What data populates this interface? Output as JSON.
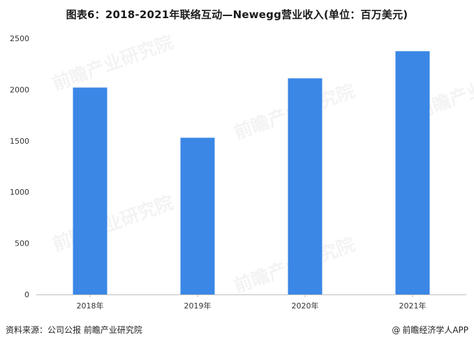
{
  "title": "图表6：2018-2021年联络互动—Newegg营业收入(单位：百万美元)",
  "chart_data": {
    "type": "bar",
    "categories": [
      "2018年",
      "2019年",
      "2020年",
      "2021年"
    ],
    "values": [
      2020,
      1530,
      2110,
      2375
    ],
    "ylim": [
      0,
      2500
    ],
    "yticks": [
      0,
      500,
      1000,
      1500,
      2000,
      2500
    ],
    "grid": false,
    "bar_color": "#3a87e6"
  },
  "footer": {
    "source": "资料来源：公司公报 前瞻产业研究院",
    "brand": "前瞻经济学人APP",
    "brand_symbol": "@"
  },
  "watermark": {
    "text": "前瞻产业研究院"
  }
}
